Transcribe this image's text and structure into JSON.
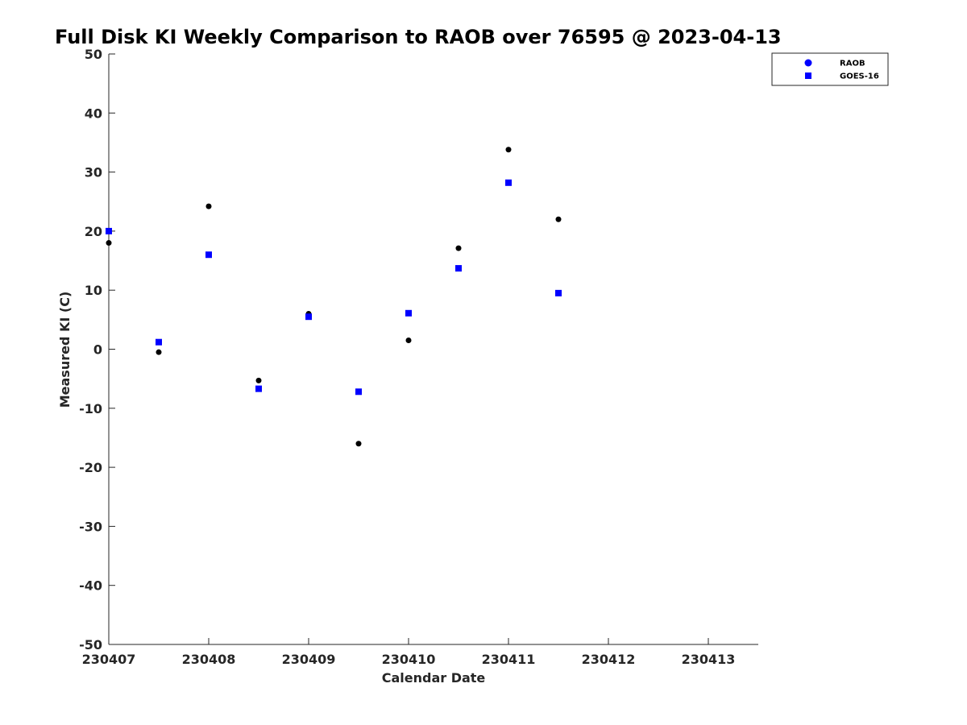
{
  "chart_data": {
    "type": "scatter",
    "title": "Full Disk KI Weekly Comparison to RAOB over 76595 @ 2023-04-13",
    "xlabel": "Calendar Date",
    "ylabel": "Measured KI (C)",
    "xlim": [
      230407,
      230413.5
    ],
    "ylim": [
      -50,
      50
    ],
    "x_ticks": [
      230407,
      230408,
      230409,
      230410,
      230411,
      230412,
      230413
    ],
    "x_tick_labels": [
      "230407",
      "230408",
      "230409",
      "230410",
      "230411",
      "230412",
      "230413"
    ],
    "y_ticks": [
      -50,
      -40,
      -30,
      -20,
      -10,
      0,
      10,
      20,
      30,
      40,
      50
    ],
    "y_tick_labels": [
      "-50",
      "-40",
      "-30",
      "-20",
      "-10",
      "0",
      "10",
      "20",
      "30",
      "40",
      "50"
    ],
    "grid": false,
    "legend_position": "top-right",
    "series": [
      {
        "name": "RAOB",
        "marker": "circle",
        "color": "#000000",
        "legend_color": "#0000ff",
        "x": [
          230407,
          230407.5,
          230408,
          230408.5,
          230409,
          230409.5,
          230410,
          230410.5,
          230411,
          230411.5
        ],
        "y": [
          18,
          -0.5,
          24.2,
          -5.3,
          6,
          -16,
          1.5,
          17.1,
          33.8,
          22
        ]
      },
      {
        "name": "GOES-16",
        "marker": "square",
        "color": "#0000ff",
        "legend_color": "#0000ff",
        "x": [
          230407,
          230407.5,
          230408,
          230408.5,
          230409,
          230409.5,
          230410,
          230410.5,
          230411,
          230411.5
        ],
        "y": [
          20,
          1.2,
          16,
          -6.7,
          5.5,
          -7.2,
          6.1,
          13.7,
          28.2,
          9.5
        ]
      }
    ]
  }
}
